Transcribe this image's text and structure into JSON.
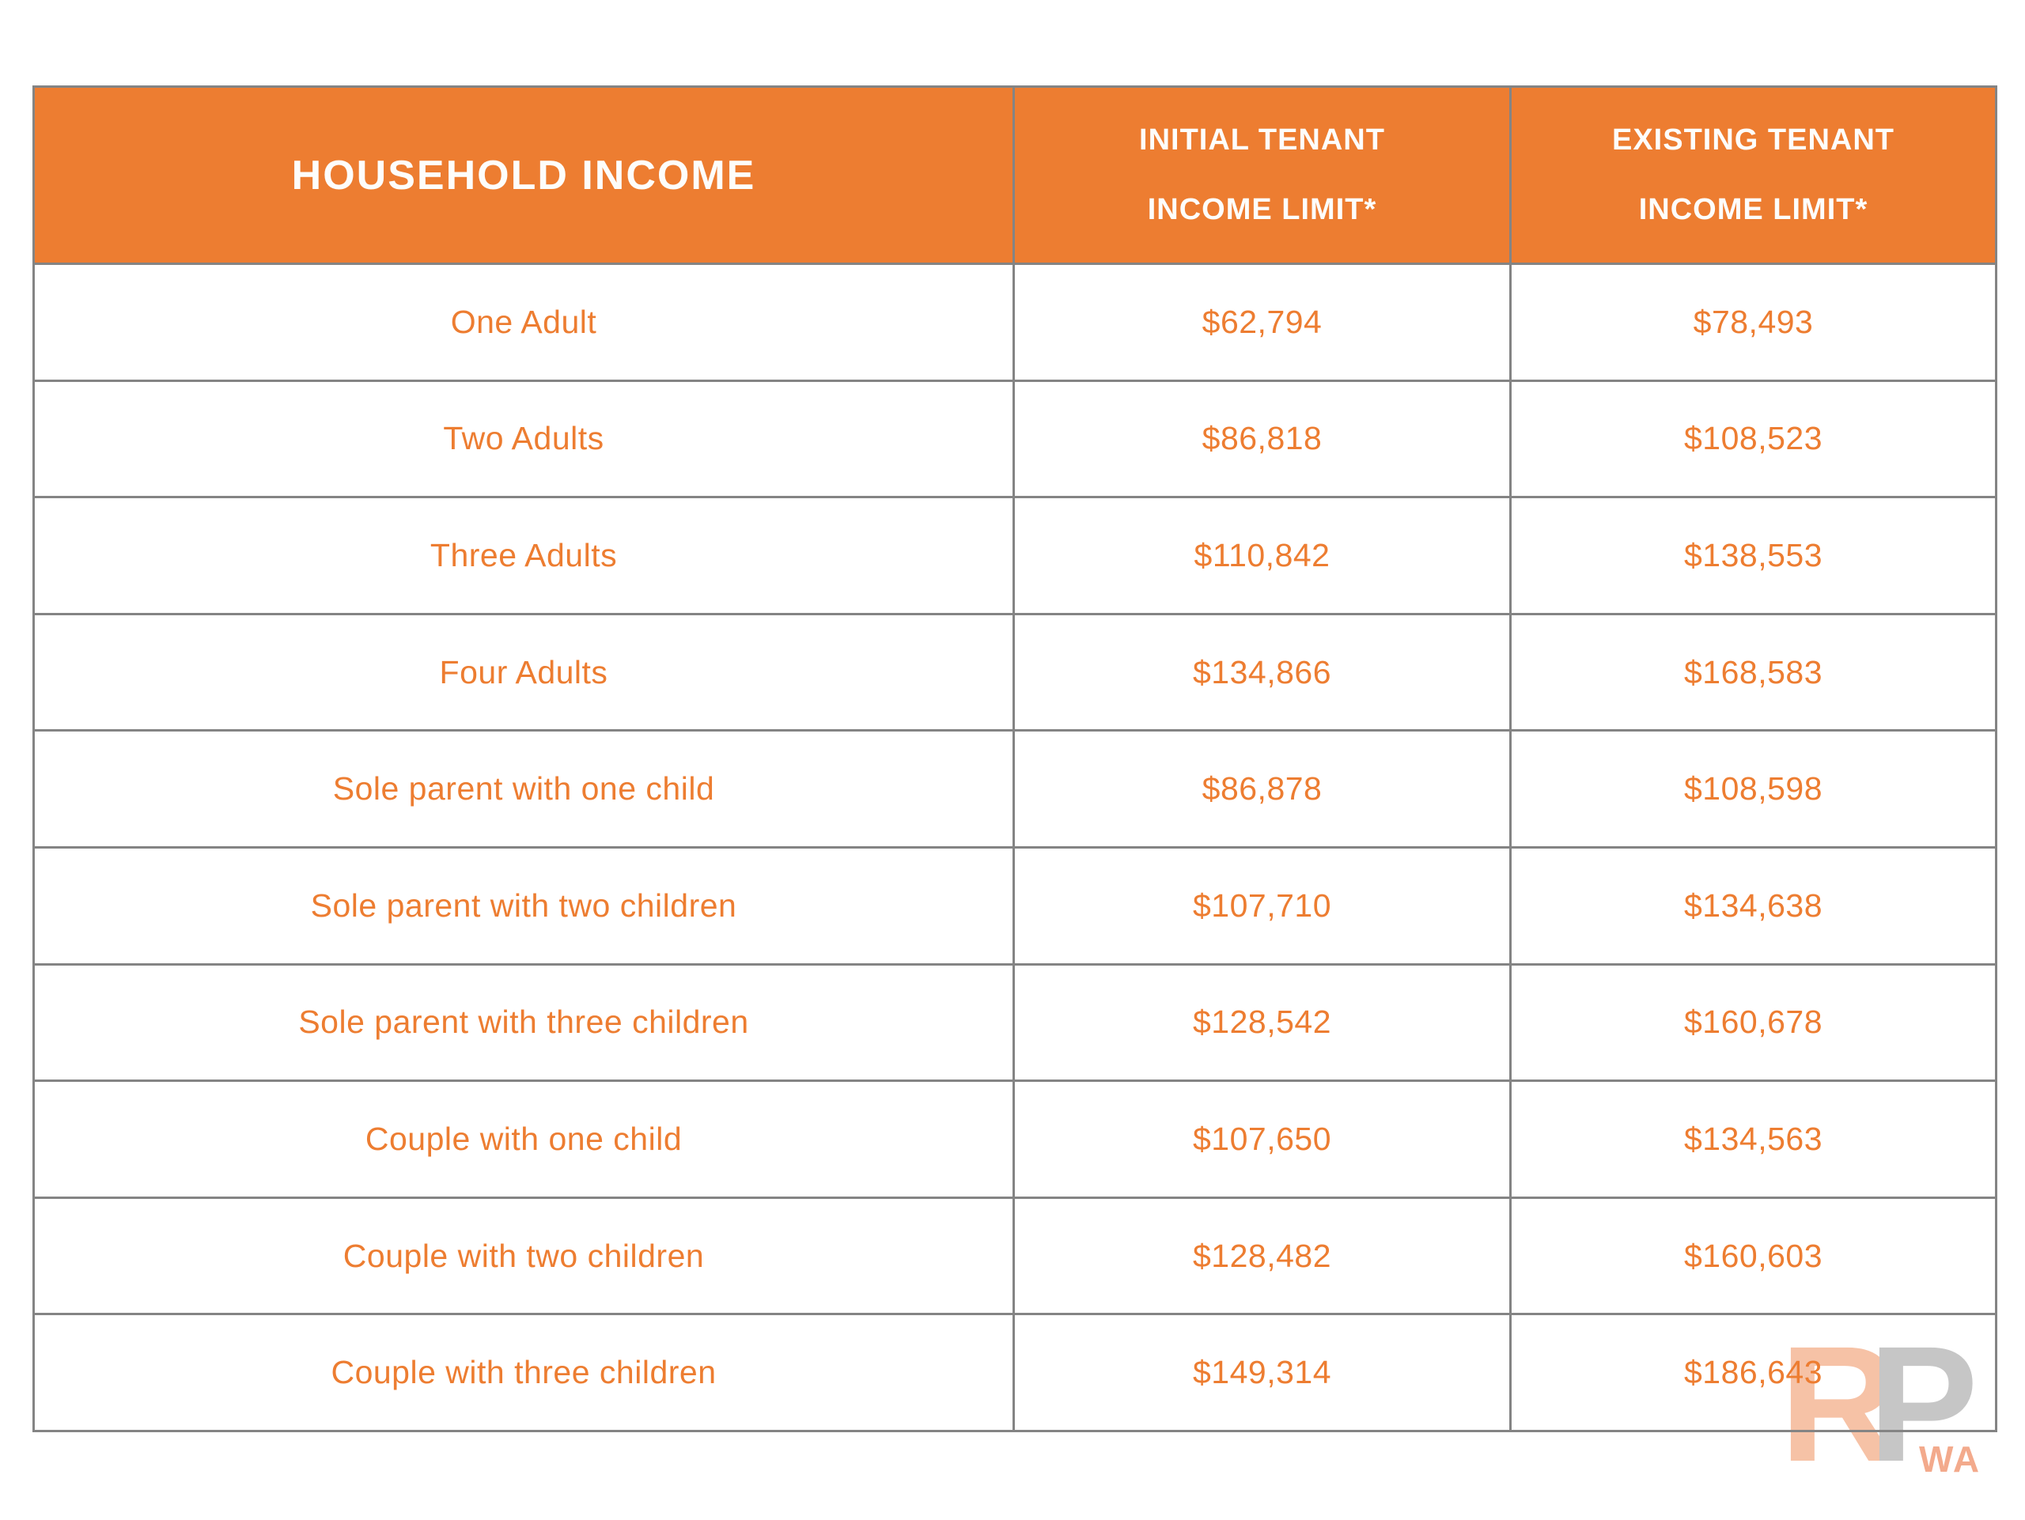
{
  "colors": {
    "accent_orange": "#ED7D31",
    "header_text": "#FFFFFF",
    "border_gray": "#848484",
    "watermark_pink": "#F6C2A6",
    "watermark_gray": "#C6C6C6"
  },
  "table": {
    "header": {
      "household": "HOUSEHOLD INCOME",
      "initial_line1": "INITIAL TENANT",
      "initial_line2": "INCOME LIMIT*",
      "existing_line1": "EXISTING TENANT",
      "existing_line2": "INCOME LIMIT*"
    },
    "rows": [
      {
        "household": "One Adult",
        "initial": "$62,794",
        "existing": "$78,493"
      },
      {
        "household": "Two Adults",
        "initial": "$86,818",
        "existing": "$108,523"
      },
      {
        "household": "Three Adults",
        "initial": "$110,842",
        "existing": "$138,553"
      },
      {
        "household": "Four Adults",
        "initial": "$134,866",
        "existing": "$168,583"
      },
      {
        "household": "Sole parent with one child",
        "initial": "$86,878",
        "existing": "$108,598"
      },
      {
        "household": "Sole parent with two children",
        "initial": "$107,710",
        "existing": "$134,638"
      },
      {
        "household": "Sole parent with three children",
        "initial": "$128,542",
        "existing": "$160,678"
      },
      {
        "household": "Couple with one child",
        "initial": "$107,650",
        "existing": "$134,563"
      },
      {
        "household": "Couple with two children",
        "initial": "$128,482",
        "existing": "$160,603"
      },
      {
        "household": "Couple with three children",
        "initial": "$149,314",
        "existing": "$186,643"
      }
    ]
  },
  "watermark": {
    "letter_r": "R",
    "letter_p": "P",
    "suffix": "WA"
  },
  "chart_data": {
    "type": "table",
    "title": "Household income limits by tenant type",
    "columns": [
      "HOUSEHOLD INCOME",
      "INITIAL TENANT INCOME LIMIT*",
      "EXISTING TENANT INCOME LIMIT*"
    ],
    "rows": [
      [
        "One Adult",
        62794,
        78493
      ],
      [
        "Two Adults",
        86818,
        108523
      ],
      [
        "Three Adults",
        110842,
        138553
      ],
      [
        "Four Adults",
        134866,
        168583
      ],
      [
        "Sole parent with one child",
        86878,
        108598
      ],
      [
        "Sole parent with two children",
        107710,
        134638
      ],
      [
        "Sole parent with three children",
        128542,
        160678
      ],
      [
        "Couple with one child",
        107650,
        134563
      ],
      [
        "Couple with two children",
        128482,
        160603
      ],
      [
        "Couple with three children",
        149314,
        186643
      ]
    ]
  }
}
